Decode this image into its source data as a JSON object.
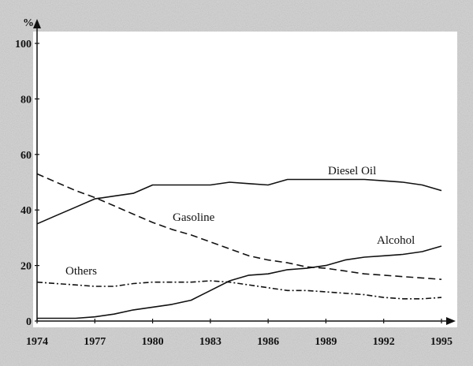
{
  "chart_data": {
    "type": "line",
    "y_unit_label": "%",
    "x": [
      1974,
      1975,
      1976,
      1977,
      1978,
      1979,
      1980,
      1981,
      1982,
      1983,
      1984,
      1985,
      1986,
      1987,
      1988,
      1989,
      1990,
      1991,
      1992,
      1993,
      1994,
      1995
    ],
    "x_ticks": [
      "1974",
      "1977",
      "1980",
      "1983",
      "1986",
      "1989",
      "1992",
      "1995"
    ],
    "y_ticks": [
      "0",
      "20",
      "40",
      "60",
      "80",
      "100"
    ],
    "xlim": [
      1974,
      1995
    ],
    "ylim": [
      0,
      100
    ],
    "series": [
      {
        "name": "Diesel Oil",
        "style": "solid",
        "values": [
          35,
          38,
          41,
          44,
          45,
          46,
          49,
          49,
          49,
          49,
          50,
          49.5,
          49,
          51,
          51,
          51,
          51,
          51,
          50.5,
          50,
          49,
          47
        ]
      },
      {
        "name": "Gasoline",
        "style": "dashed",
        "values": [
          53,
          50,
          47,
          44.5,
          41.5,
          38.5,
          35.5,
          33,
          31,
          28.5,
          26,
          23.5,
          22,
          21,
          19.5,
          19,
          18,
          17,
          16.5,
          16,
          15.5,
          15
        ]
      },
      {
        "name": "Alcohol",
        "style": "solid",
        "values": [
          1,
          1,
          1,
          1.5,
          2.5,
          4,
          5,
          6,
          7.5,
          11,
          14.5,
          16.5,
          17,
          18.5,
          19,
          20,
          22,
          23,
          23.5,
          24,
          25,
          27
        ]
      },
      {
        "name": "Others",
        "style": "dashdot",
        "values": [
          14,
          13.5,
          13,
          12.5,
          12.5,
          13.5,
          14,
          14,
          14,
          14.5,
          14,
          13,
          12,
          11,
          11,
          10.5,
          10,
          9.5,
          8.5,
          8,
          8,
          8.5
        ]
      }
    ],
    "labels": {
      "diesel": "Diesel Oil",
      "gasoline": "Gasoline",
      "alcohol": "Alcohol",
      "others": "Others"
    }
  }
}
